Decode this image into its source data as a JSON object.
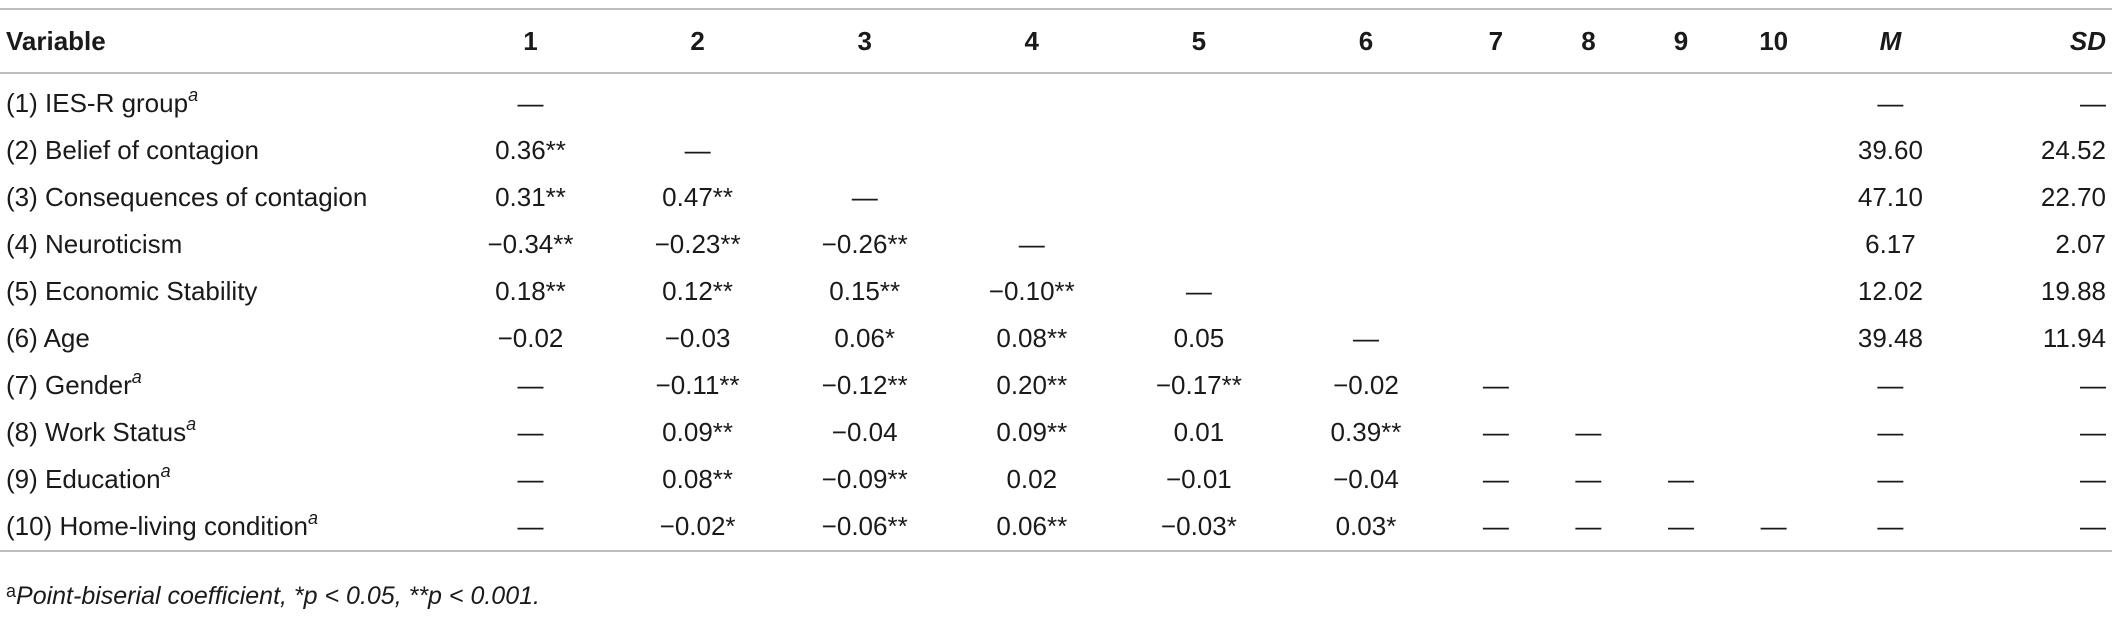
{
  "table": {
    "headers": [
      "Variable",
      "1",
      "2",
      "3",
      "4",
      "5",
      "6",
      "7",
      "8",
      "9",
      "10",
      "M",
      "SD"
    ],
    "rows": [
      {
        "label": "(1) IES-R group",
        "mark": "a",
        "cells": [
          "—",
          "",
          "",
          "",
          "",
          "",
          "",
          "",
          "",
          "",
          "—",
          "—"
        ]
      },
      {
        "label": "(2) Belief of contagion",
        "mark": "",
        "cells": [
          "0.36**",
          "—",
          "",
          "",
          "",
          "",
          "",
          "",
          "",
          "",
          "39.60",
          "24.52"
        ]
      },
      {
        "label": "(3) Consequences of contagion",
        "mark": "",
        "cells": [
          "0.31**",
          "0.47**",
          "—",
          "",
          "",
          "",
          "",
          "",
          "",
          "",
          "47.10",
          "22.70"
        ]
      },
      {
        "label": "(4) Neuroticism",
        "mark": "",
        "cells": [
          "−0.34**",
          "−0.23**",
          "−0.26**",
          "—",
          "",
          "",
          "",
          "",
          "",
          "",
          "6.17",
          "2.07"
        ]
      },
      {
        "label": "(5) Economic Stability",
        "mark": "",
        "cells": [
          "0.18**",
          "0.12**",
          "0.15**",
          "−0.10**",
          "—",
          "",
          "",
          "",
          "",
          "",
          "12.02",
          "19.88"
        ]
      },
      {
        "label": "(6) Age",
        "mark": "",
        "cells": [
          "−0.02",
          "−0.03",
          "0.06*",
          "0.08**",
          "0.05",
          "—",
          "",
          "",
          "",
          "",
          "39.48",
          "11.94"
        ]
      },
      {
        "label": "(7) Gender",
        "mark": "a",
        "cells": [
          "—",
          "−0.11**",
          "−0.12**",
          "0.20**",
          "−0.17**",
          "−0.02",
          "—",
          "",
          "",
          "",
          "—",
          "—"
        ]
      },
      {
        "label": "(8) Work Status",
        "mark": "a",
        "cells": [
          "—",
          "0.09**",
          "−0.04",
          "0.09**",
          "0.01",
          "0.39**",
          "—",
          "—",
          "",
          "",
          "—",
          "—"
        ]
      },
      {
        "label": "(9) Education",
        "mark": "a",
        "cells": [
          "—",
          "0.08**",
          "−0.09**",
          "0.02",
          "−0.01",
          "−0.04",
          "—",
          "—",
          "—",
          "",
          "—",
          "—"
        ]
      },
      {
        "label": "(10) Home-living condition",
        "mark": "a",
        "cells": [
          "—",
          "−0.02*",
          "−0.06**",
          "0.06**",
          "−0.03*",
          "0.03*",
          "—",
          "—",
          "—",
          "—",
          "—",
          "—"
        ]
      }
    ]
  },
  "footnote": {
    "mark": "a",
    "text": "Point-biserial coefficient, *p < 0.05, **p < 0.001."
  }
}
